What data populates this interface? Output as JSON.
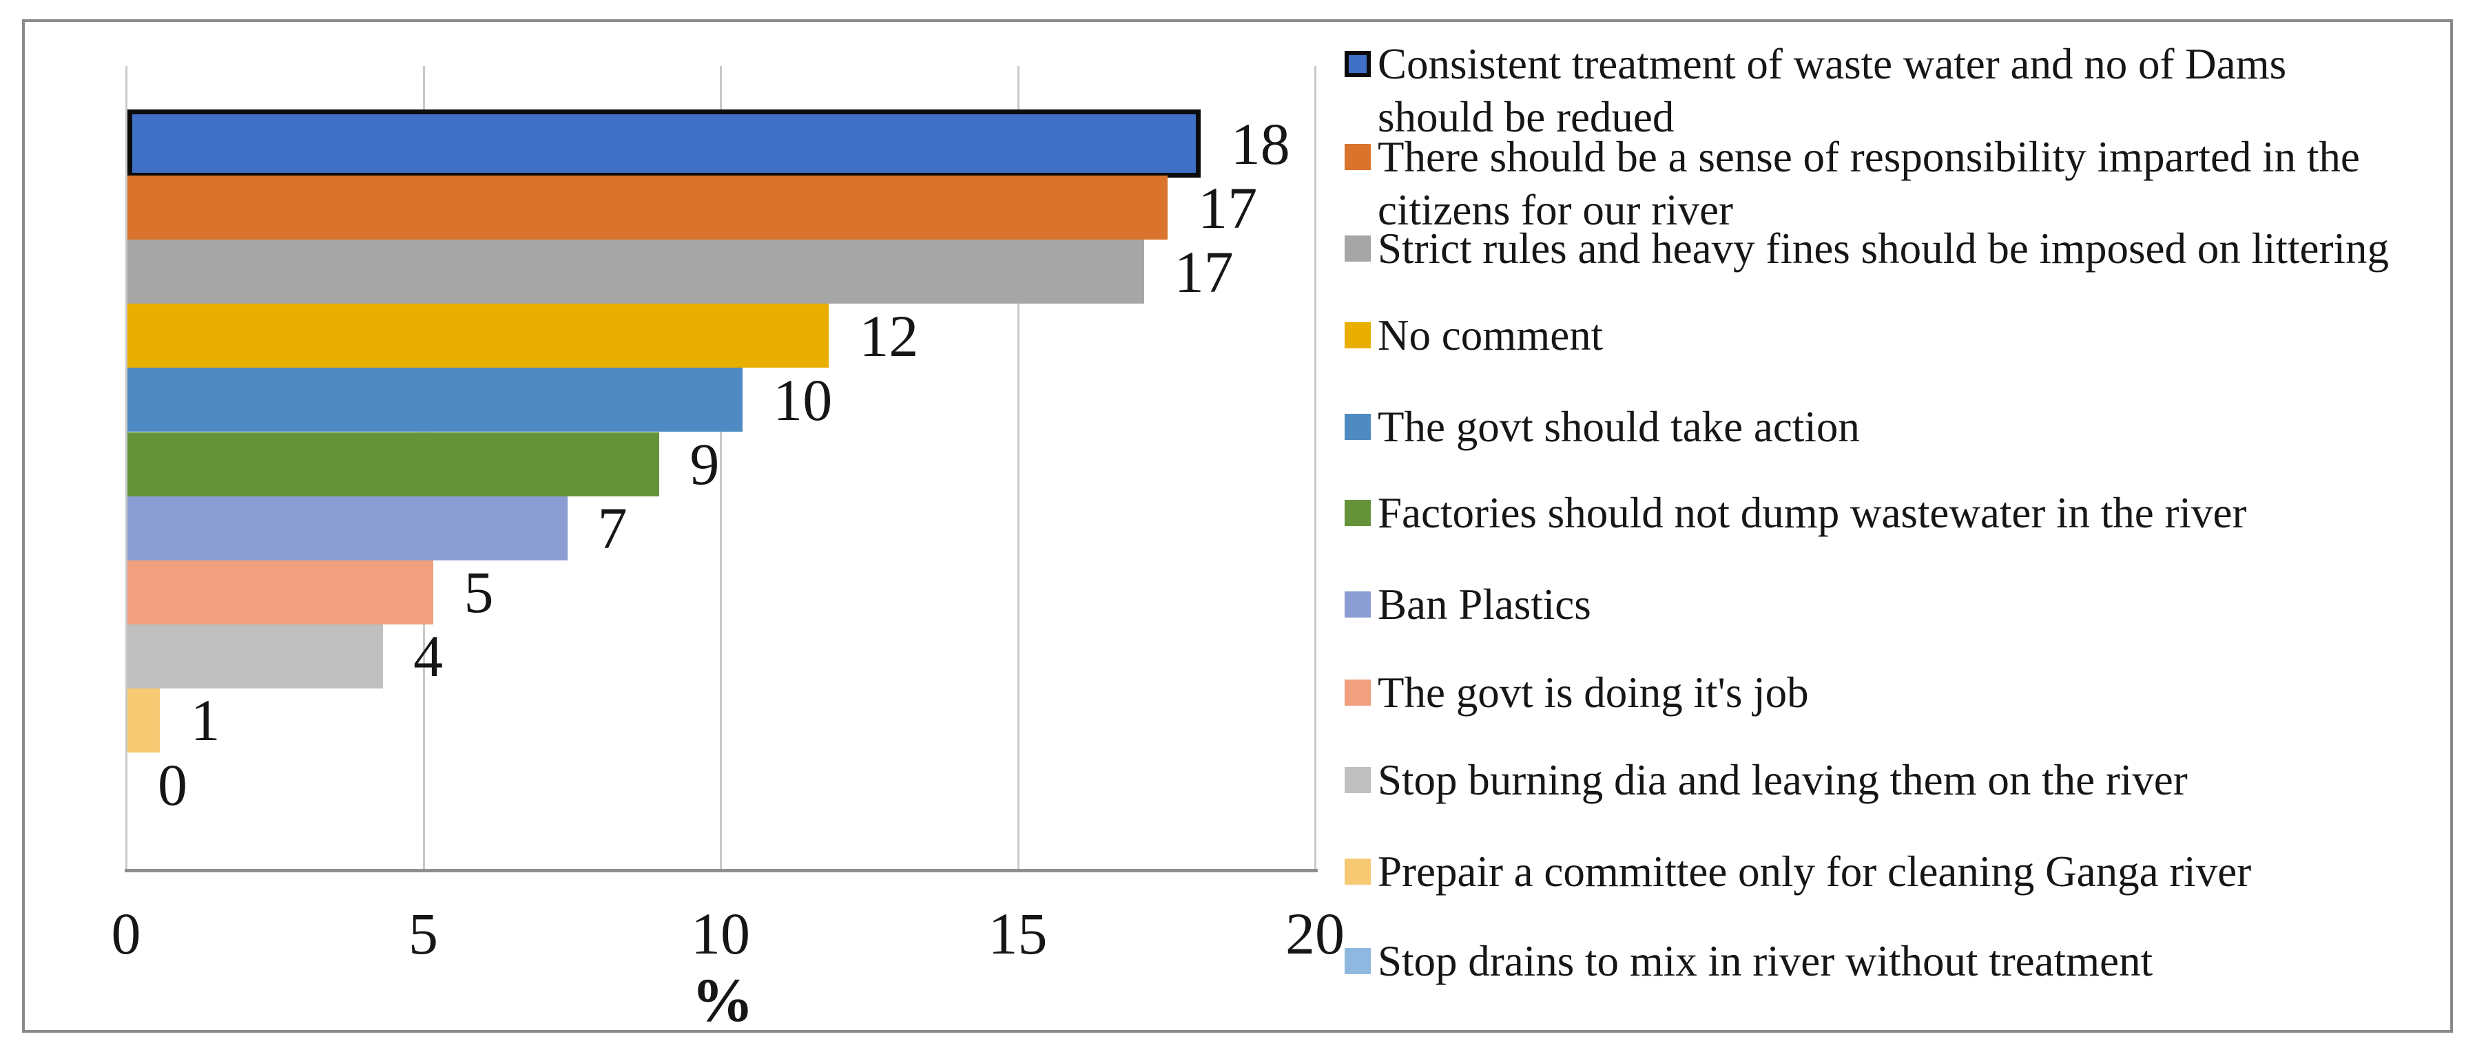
{
  "chart_data": {
    "type": "bar",
    "orientation": "horizontal",
    "title": "",
    "xlabel": "%",
    "xlim": [
      0,
      20
    ],
    "xticks": [
      0,
      5,
      10,
      15,
      20
    ],
    "xtick_labels": [
      "0",
      "5",
      "10",
      "15",
      "20"
    ],
    "grid": true,
    "legend_position": "right",
    "categories": [
      "Consistent treatment of waste water and no of Dams should be redued",
      "There should be a sense of responsibility imparted in the citizens for our river",
      "Strict rules and heavy fines should be imposed on littering",
      "No comment",
      "The govt should take action",
      "Factories should not dump wastewater in the river",
      "Ban Plastics",
      "The govt is doing it's job",
      "Stop burning dia and leaving them on the river",
      "Prepair a committee only for cleaning Ganga river",
      "Stop drains to mix in river without treatment"
    ],
    "values": [
      18,
      17,
      17,
      12,
      10,
      9,
      7,
      5,
      4,
      1,
      0
    ],
    "value_labels": [
      "18",
      "17",
      "17",
      "12",
      "10",
      "9",
      "7",
      "5",
      "4",
      "1",
      "0"
    ],
    "bar_lengths_precise": [
      18.05,
      17.5,
      17.1,
      11.8,
      10.35,
      8.95,
      7.4,
      5.15,
      4.3,
      0.55,
      0
    ],
    "colors": [
      "#3F70C5",
      "#DA732C",
      "#A6A6A6",
      "#E9AF00",
      "#4F8BC2",
      "#649339",
      "#8C9DD4",
      "#F09F7F",
      "#BFBFBF",
      "#F7C972",
      "#8FB8E0"
    ],
    "first_bar_border_color": "#0b0b0b",
    "gridline_color": "#c9c9c9",
    "axis_line_color": "#8e8e8e",
    "frame_border_color": "#8a8a8a"
  },
  "legend": {
    "items": [
      {
        "label": "Consistent treatment of waste water and no of Dams\nshould be redued",
        "color": "#3F70C5",
        "bordered": true
      },
      {
        "label": "There should be a sense of responsibility imparted in the\ncitizens for our river",
        "color": "#DA732C",
        "bordered": false
      },
      {
        "label": "Strict rules and heavy fines should be imposed on littering",
        "color": "#A6A6A6",
        "bordered": false
      },
      {
        "label": "No comment",
        "color": "#E9AF00",
        "bordered": false
      },
      {
        "label": "The govt should take action",
        "color": "#4F8BC2",
        "bordered": false
      },
      {
        "label": "Factories should not dump wastewater in the river",
        "color": "#649339",
        "bordered": false
      },
      {
        "label": "Ban Plastics",
        "color": "#8C9DD4",
        "bordered": false
      },
      {
        "label": "The govt is doing it's job",
        "color": "#F09F7F",
        "bordered": false
      },
      {
        "label": "Stop burning dia and leaving them on the river",
        "color": "#BFBFBF",
        "bordered": false
      },
      {
        "label": "Prepair a committee only for cleaning Ganga river",
        "color": "#F7C972",
        "bordered": false
      },
      {
        "label": "Stop drains to mix in river without treatment",
        "color": "#8FB8E0",
        "bordered": false
      }
    ]
  },
  "axis": {
    "x_title": "%"
  }
}
